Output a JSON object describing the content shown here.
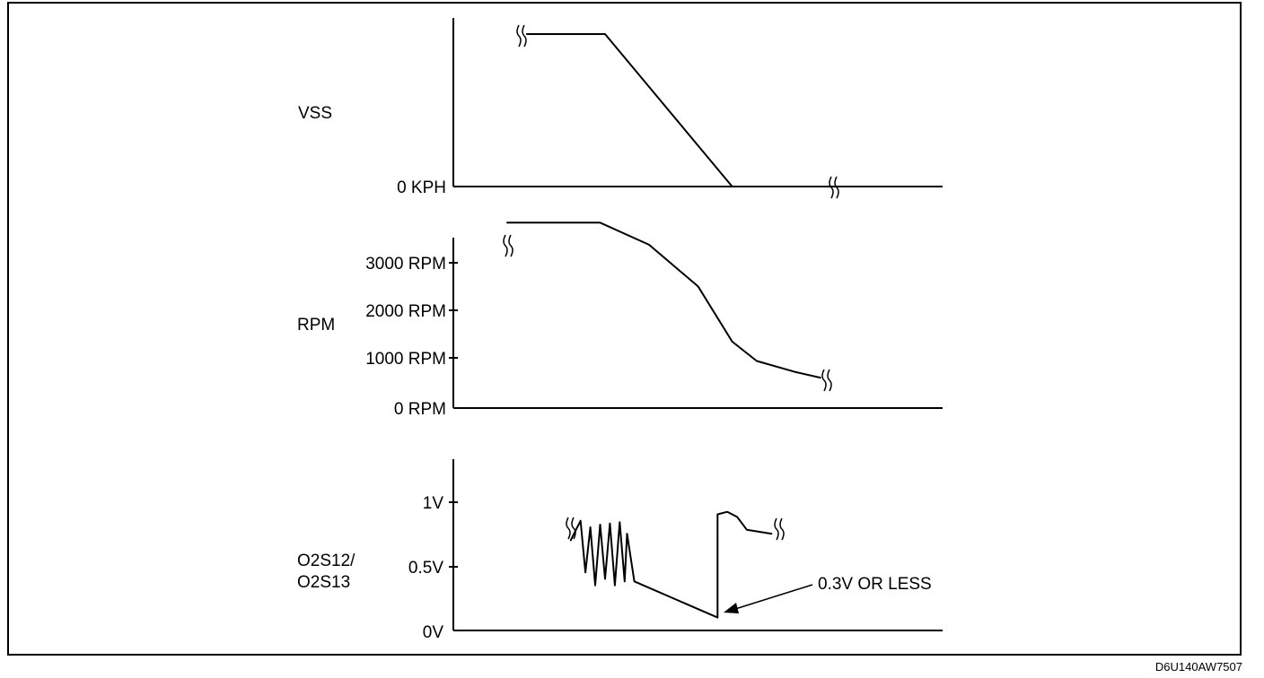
{
  "figure_id": "D6U140AW7507",
  "chart_data": [
    {
      "type": "line",
      "ylabel": "VSS",
      "y_ticks": [
        "0 KPH"
      ],
      "series": [
        {
          "x": [
            0.15,
            0.31,
            0.57,
            0.77
          ],
          "y": [
            1,
            1,
            0,
            0
          ]
        }
      ]
    },
    {
      "type": "line",
      "ylabel": "RPM",
      "y_ticks": [
        "3000 RPM",
        "2000 RPM",
        "1000 RPM",
        "0 RPM"
      ],
      "ylim": [
        0,
        3500
      ],
      "series": [
        {
          "x": [
            0.11,
            0.3,
            0.4,
            0.5,
            0.57,
            0.62,
            0.7,
            0.75
          ],
          "y": [
            3350,
            3350,
            2950,
            2200,
            1200,
            850,
            650,
            550
          ]
        }
      ]
    },
    {
      "type": "line",
      "ylabel": "O2S12/\nO2S13",
      "y_ticks": [
        "1V",
        "0.5V",
        "0V"
      ],
      "ylim": [
        0,
        1.3
      ],
      "annotation": "0.3V OR LESS",
      "series": [
        {
          "x": [
            0.24,
            0.26,
            0.27,
            0.28,
            0.29,
            0.3,
            0.31,
            0.32,
            0.33,
            0.34,
            0.35,
            0.355,
            0.37,
            0.54,
            0.54,
            0.56,
            0.58,
            0.6,
            0.65
          ],
          "y": [
            0.7,
            0.85,
            0.45,
            0.8,
            0.35,
            0.82,
            0.4,
            0.83,
            0.35,
            0.84,
            0.38,
            0.75,
            0.38,
            0.1,
            0.9,
            0.92,
            0.88,
            0.78,
            0.75
          ]
        }
      ]
    }
  ]
}
